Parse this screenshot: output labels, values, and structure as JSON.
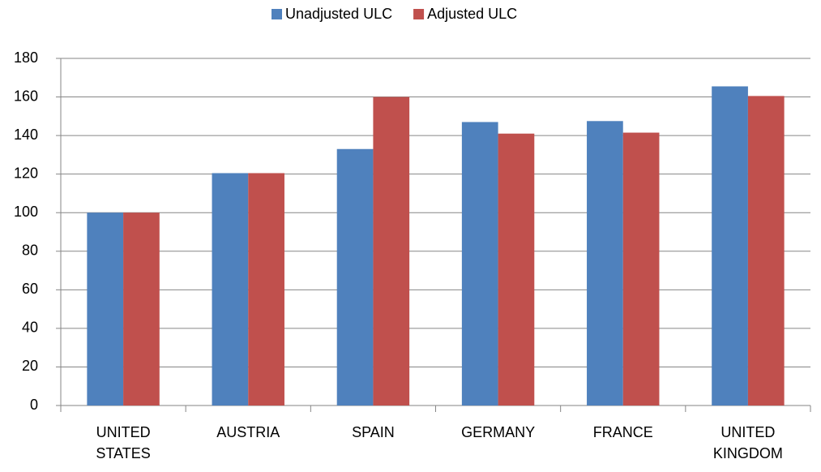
{
  "chart_data": {
    "type": "bar",
    "categories": [
      "UNITED STATES",
      "AUSTRIA",
      "SPAIN",
      "GERMANY",
      "FRANCE",
      "UNITED KINGDOM"
    ],
    "series": [
      {
        "name": "Unadjusted ULC",
        "color": "#4f81bd",
        "values": [
          100,
          120.5,
          133,
          147,
          147.5,
          165.5
        ]
      },
      {
        "name": "Adjusted ULC",
        "color": "#c0504d",
        "values": [
          100,
          120.5,
          160,
          141,
          141.5,
          160.5
        ]
      }
    ],
    "ylim": [
      0,
      180
    ],
    "yticks": [
      0,
      20,
      40,
      60,
      80,
      100,
      120,
      140,
      160,
      180
    ],
    "grid": true,
    "legend": "top"
  }
}
